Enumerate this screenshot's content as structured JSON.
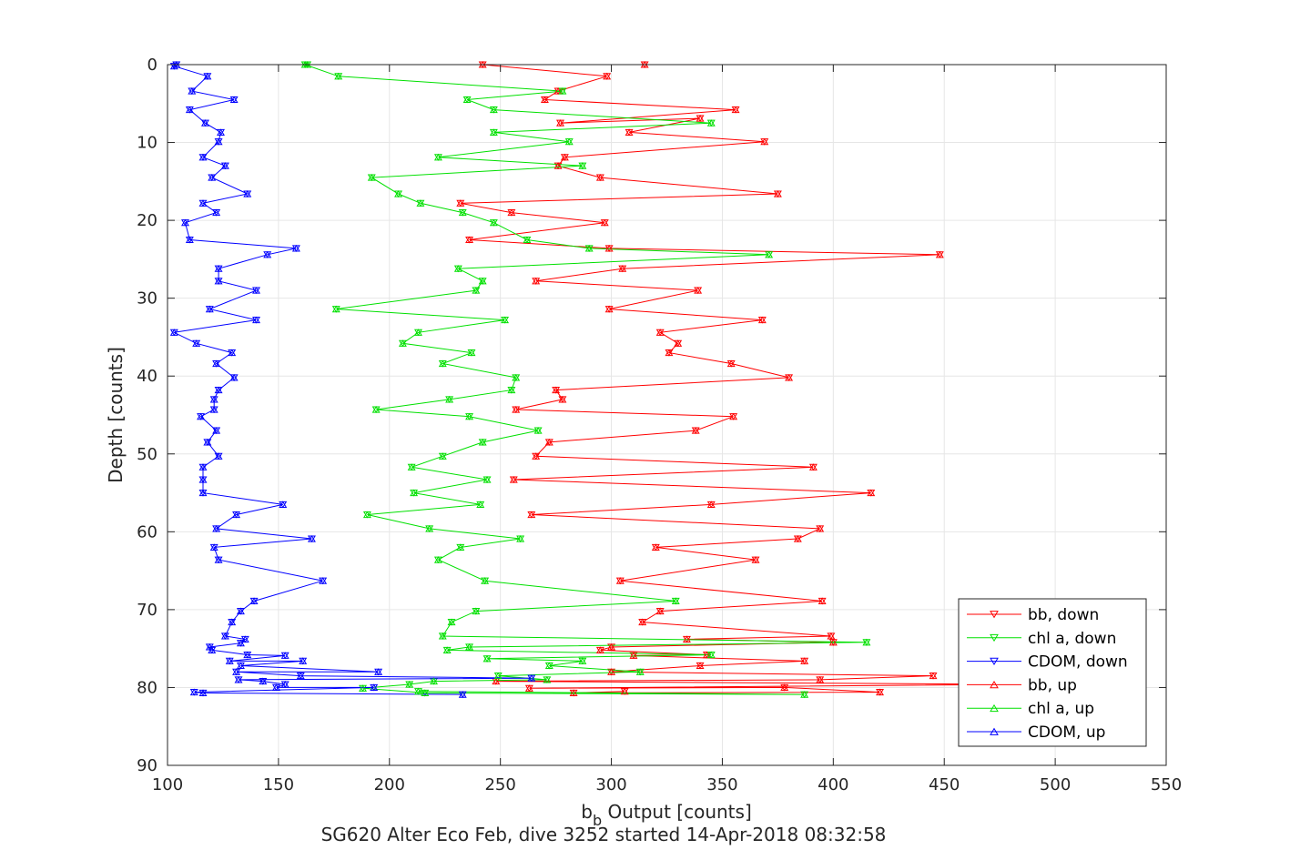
{
  "chart_data": {
    "type": "line",
    "title": "",
    "xlabel_main": "b",
    "xlabel_sub": "b",
    "xlabel_rest": " Output [counts]",
    "ylabel": "Depth [counts]",
    "caption": "SG620 Alter Eco Feb, dive 3252 started 14-Apr-2018 08:32:58",
    "xlim": [
      100,
      550
    ],
    "ylim": [
      0,
      90
    ],
    "y_reversed": true,
    "grid": true,
    "legend_position": "bottom-right",
    "xticks": [
      100,
      150,
      200,
      250,
      300,
      350,
      400,
      450,
      500,
      550
    ],
    "yticks": [
      0,
      10,
      20,
      30,
      40,
      50,
      60,
      70,
      80,
      90
    ],
    "series": [
      {
        "name": "bb, down",
        "color": "#ff0000",
        "marker": "down",
        "points": [
          [
            315,
            0
          ],
          [
            242,
            0
          ],
          [
            298,
            1.5
          ],
          [
            276,
            3.4
          ],
          [
            270,
            4.5
          ],
          [
            356,
            5.8
          ],
          [
            277,
            7.5
          ],
          [
            340,
            6.9
          ],
          [
            308,
            8.7
          ],
          [
            369,
            9.9
          ],
          [
            279,
            11.9
          ],
          [
            276,
            13
          ],
          [
            295,
            14.5
          ],
          [
            375,
            16.6
          ],
          [
            232,
            17.8
          ],
          [
            255,
            19
          ],
          [
            297,
            20.3
          ],
          [
            236,
            22.5
          ],
          [
            299,
            23.6
          ],
          [
            448,
            24.4
          ],
          [
            305,
            26.2
          ],
          [
            266,
            27.8
          ],
          [
            339,
            29
          ],
          [
            299,
            31.4
          ],
          [
            368,
            32.8
          ],
          [
            322,
            34.4
          ],
          [
            330,
            35.8
          ],
          [
            326,
            37
          ],
          [
            354,
            38.4
          ],
          [
            380,
            40.2
          ],
          [
            275,
            41.8
          ],
          [
            278,
            43
          ],
          [
            257,
            44.3
          ],
          [
            355,
            45.2
          ],
          [
            338,
            47
          ],
          [
            272,
            48.5
          ],
          [
            266,
            50.3
          ],
          [
            391,
            51.7
          ],
          [
            256,
            53.3
          ],
          [
            417,
            55
          ],
          [
            345,
            56.5
          ],
          [
            264,
            57.8
          ],
          [
            394,
            59.6
          ],
          [
            384,
            60.9
          ],
          [
            320,
            62
          ],
          [
            365,
            63.6
          ],
          [
            304,
            66.3
          ],
          [
            395,
            68.9
          ],
          [
            322,
            70.2
          ],
          [
            314,
            71.6
          ],
          [
            399,
            73.4
          ],
          [
            334,
            73.8
          ],
          [
            400,
            74.2
          ],
          [
            300,
            74.8
          ],
          [
            295,
            75.2
          ],
          [
            343,
            75.8
          ],
          [
            310,
            75.9
          ],
          [
            387,
            76.6
          ],
          [
            340,
            77.2
          ],
          [
            300,
            78
          ],
          [
            445,
            78.5
          ],
          [
            394,
            79
          ],
          [
            248,
            79.2
          ],
          [
            484,
            79.6
          ],
          [
            263,
            80.1
          ],
          [
            378,
            80
          ],
          [
            421,
            80.6
          ],
          [
            283,
            80.7
          ],
          [
            306,
            80.5
          ]
        ]
      },
      {
        "name": "chl a, down",
        "color": "#00e000",
        "marker": "down",
        "points": [
          [
            163,
            0
          ],
          [
            162,
            0
          ],
          [
            177,
            1.5
          ],
          [
            278,
            3.4
          ],
          [
            235,
            4.5
          ],
          [
            247,
            5.8
          ],
          [
            345,
            7.5
          ],
          [
            247,
            8.7
          ],
          [
            281,
            9.9
          ],
          [
            222,
            11.9
          ],
          [
            287,
            13
          ],
          [
            192,
            14.5
          ],
          [
            204,
            16.6
          ],
          [
            214,
            17.8
          ],
          [
            233,
            19
          ],
          [
            247,
            20.3
          ],
          [
            262,
            22.5
          ],
          [
            290,
            23.6
          ],
          [
            371,
            24.4
          ],
          [
            231,
            26.2
          ],
          [
            242,
            27.8
          ],
          [
            239,
            29
          ],
          [
            176,
            31.4
          ],
          [
            252,
            32.8
          ],
          [
            213,
            34.4
          ],
          [
            206,
            35.8
          ],
          [
            237,
            37
          ],
          [
            224,
            38.4
          ],
          [
            257,
            40.2
          ],
          [
            255,
            41.8
          ],
          [
            227,
            43
          ],
          [
            194,
            44.3
          ],
          [
            236,
            45.2
          ],
          [
            267,
            47
          ],
          [
            242,
            48.5
          ],
          [
            224,
            50.3
          ],
          [
            210,
            51.7
          ],
          [
            244,
            53.3
          ],
          [
            211,
            55
          ],
          [
            241,
            56.5
          ],
          [
            190,
            57.8
          ],
          [
            218,
            59.6
          ],
          [
            259,
            60.9
          ],
          [
            232,
            62
          ],
          [
            222,
            63.6
          ],
          [
            243,
            66.3
          ],
          [
            329,
            68.9
          ],
          [
            239,
            70.2
          ],
          [
            228,
            71.6
          ],
          [
            224,
            73.4
          ],
          [
            415,
            74.2
          ],
          [
            236,
            74.8
          ],
          [
            226,
            75.2
          ],
          [
            345,
            75.8
          ],
          [
            244,
            76.3
          ],
          [
            287,
            76.6
          ],
          [
            272,
            77.2
          ],
          [
            313,
            78
          ],
          [
            249,
            78.5
          ],
          [
            271,
            79
          ],
          [
            220,
            79.2
          ],
          [
            209,
            79.6
          ],
          [
            188,
            80.1
          ],
          [
            216,
            80.7
          ],
          [
            387,
            80.9
          ],
          [
            213,
            80.5
          ]
        ]
      },
      {
        "name": "CDOM, down",
        "color": "#0000ff",
        "marker": "down",
        "points": [
          [
            104,
            0
          ],
          [
            103,
            0.2
          ],
          [
            118,
            1.5
          ],
          [
            111,
            3.4
          ],
          [
            130,
            4.5
          ],
          [
            110,
            5.8
          ],
          [
            117,
            7.5
          ],
          [
            124,
            8.7
          ],
          [
            123,
            9.9
          ],
          [
            116,
            11.9
          ],
          [
            126,
            13
          ],
          [
            120,
            14.5
          ],
          [
            136,
            16.6
          ],
          [
            116,
            17.8
          ],
          [
            122,
            19
          ],
          [
            108,
            20.3
          ],
          [
            110,
            22.5
          ],
          [
            158,
            23.6
          ],
          [
            145,
            24.4
          ],
          [
            123,
            26.2
          ],
          [
            123,
            27.8
          ],
          [
            140,
            29
          ],
          [
            119,
            31.4
          ],
          [
            140,
            32.8
          ],
          [
            103,
            34.4
          ],
          [
            113,
            35.8
          ],
          [
            129,
            37
          ],
          [
            122,
            38.4
          ],
          [
            130,
            40.2
          ],
          [
            123,
            41.8
          ],
          [
            121,
            43
          ],
          [
            121,
            44.3
          ],
          [
            115,
            45.2
          ],
          [
            122,
            47
          ],
          [
            118,
            48.5
          ],
          [
            123,
            50.3
          ],
          [
            116,
            51.7
          ],
          [
            116,
            53.3
          ],
          [
            116,
            55
          ],
          [
            152,
            56.5
          ],
          [
            131,
            57.8
          ],
          [
            122,
            59.6
          ],
          [
            165,
            60.9
          ],
          [
            121,
            62
          ],
          [
            123,
            63.6
          ],
          [
            170,
            66.3
          ],
          [
            139,
            68.9
          ],
          [
            133,
            70.2
          ],
          [
            129,
            71.6
          ],
          [
            126,
            73.4
          ],
          [
            135,
            73.8
          ],
          [
            133,
            74.3
          ],
          [
            119,
            74.8
          ],
          [
            120,
            75.2
          ],
          [
            136,
            75.8
          ],
          [
            153,
            75.9
          ],
          [
            128,
            76.6
          ],
          [
            161,
            76.6
          ],
          [
            133,
            77.2
          ],
          [
            195,
            78
          ],
          [
            131,
            78
          ],
          [
            160,
            78.5
          ],
          [
            264,
            78.8
          ],
          [
            132,
            79
          ],
          [
            143,
            79.2
          ],
          [
            153,
            79.6
          ],
          [
            149,
            80
          ],
          [
            193,
            80
          ],
          [
            112,
            80.6
          ],
          [
            116,
            80.7
          ],
          [
            233,
            80.9
          ]
        ]
      },
      {
        "name": "bb, up",
        "color": "#ff0000",
        "marker": "up",
        "points": [],
        "shares_path_with": "bb, down"
      },
      {
        "name": "chl a, up",
        "color": "#00e000",
        "marker": "up",
        "points": [],
        "shares_path_with": "chl a, down"
      },
      {
        "name": "CDOM, up",
        "color": "#0000ff",
        "marker": "up",
        "points": [],
        "shares_path_with": "CDOM, down"
      }
    ]
  }
}
